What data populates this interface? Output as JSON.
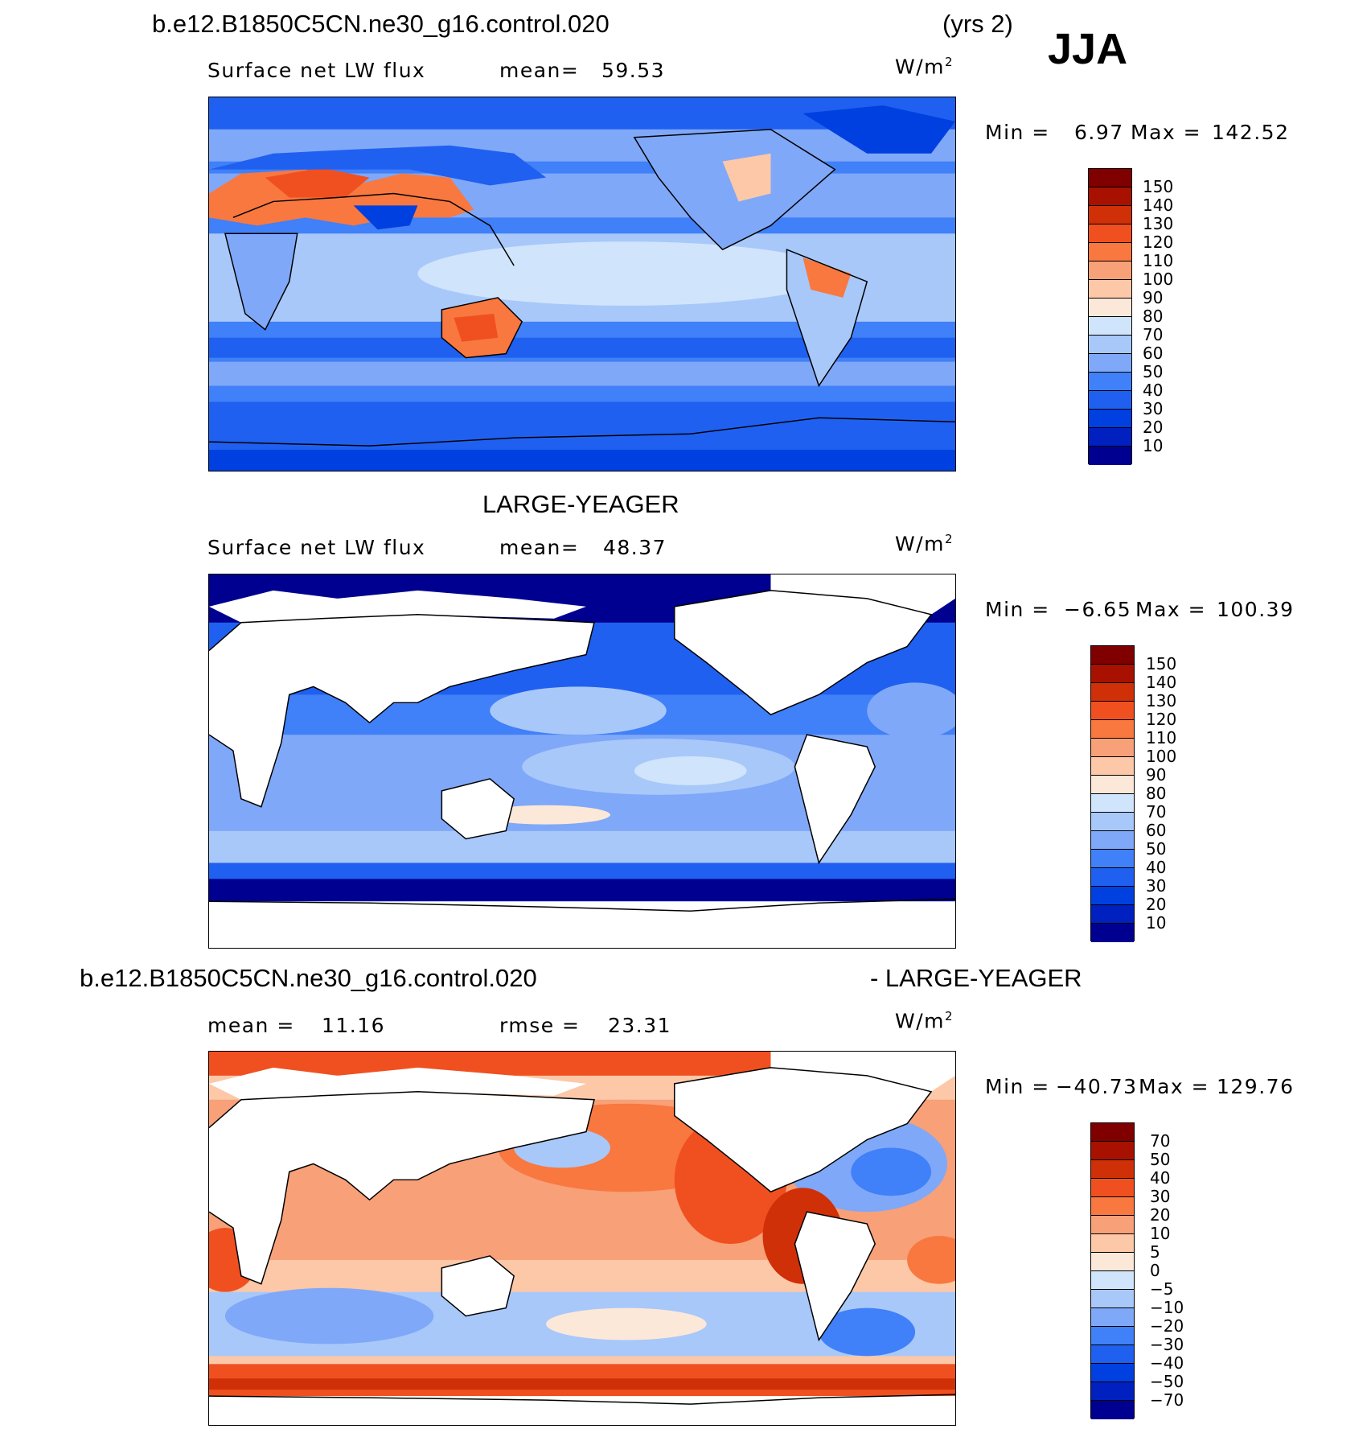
{
  "header": {
    "case_name": "b.e12.B1850C5CN.ne30_g16.control.020",
    "years": "(yrs 2)",
    "season": "JJA"
  },
  "colors": {
    "abs_scale": [
      "#000090",
      "#0020C0",
      "#0040E0",
      "#2060F0",
      "#4080F8",
      "#80A8F8",
      "#A8C8FA",
      "#D0E4FC",
      "#FCE8D8",
      "#FCC8A8",
      "#F8A078",
      "#F87840",
      "#F05020",
      "#D03008",
      "#A81000",
      "#800000"
    ],
    "diff_scale": [
      "#000090",
      "#0020C0",
      "#0040E0",
      "#2060F0",
      "#4080F8",
      "#80A8F8",
      "#A8C8FA",
      "#D0E4FC",
      "#FCE8D8",
      "#FCC8A8",
      "#F8A078",
      "#F87840",
      "#F05020",
      "#D03008",
      "#A81000",
      "#800000"
    ],
    "land_mask": "#FFFFFF"
  },
  "chart_data": [
    {
      "type": "heatmap",
      "panel": "model",
      "field": "Surface net LW flux",
      "mean_label": "mean=",
      "mean": "59.53",
      "units": "W/m",
      "units_exp": "2",
      "min_label": "Min =",
      "min": "6.97",
      "max_label": "Max =",
      "max": "142.52",
      "levels": [
        "150",
        "140",
        "130",
        "120",
        "110",
        "100",
        "90",
        "80",
        "70",
        "60",
        "50",
        "40",
        "30",
        "20",
        "10"
      ]
    },
    {
      "type": "heatmap",
      "panel": "obs",
      "title": "LARGE-YEAGER",
      "field": "Surface net LW flux",
      "mean_label": "mean=",
      "mean": "48.37",
      "units": "W/m",
      "units_exp": "2",
      "min_label": "Min =",
      "min": "−6.65",
      "max_label": "Max =",
      "max": "100.39",
      "levels": [
        "150",
        "140",
        "130",
        "120",
        "110",
        "100",
        "90",
        "80",
        "70",
        "60",
        "50",
        "40",
        "30",
        "20",
        "10"
      ]
    },
    {
      "type": "heatmap",
      "panel": "difference",
      "title_left": "b.e12.B1850C5CN.ne30_g16.control.020",
      "title_right": "- LARGE-YEAGER",
      "mean_label": "mean =",
      "mean": "11.16",
      "rmse_label": "rmse =",
      "rmse": "23.31",
      "units": "W/m",
      "units_exp": "2",
      "min_label": "Min =",
      "min": "−40.73",
      "max_label": "Max =",
      "max": "129.76",
      "levels": [
        "70",
        "50",
        "40",
        "30",
        "20",
        "10",
        "5",
        "0",
        "−5",
        "−10",
        "−20",
        "−30",
        "−40",
        "−50",
        "−70"
      ]
    }
  ]
}
